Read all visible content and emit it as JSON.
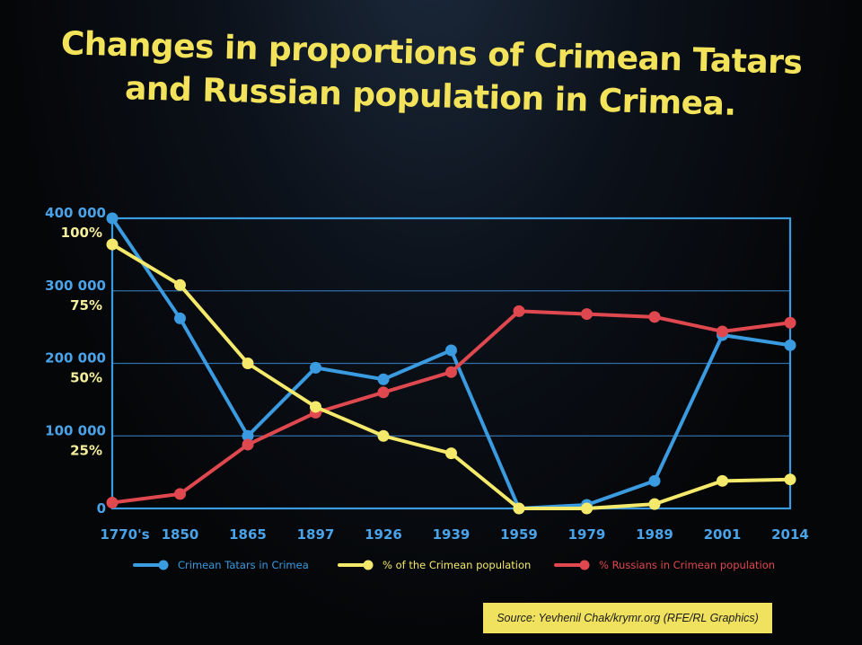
{
  "title": {
    "line1": "Changes in proportions of Crimean Tatars",
    "line2": "and Russian population in Crimea."
  },
  "source": "Source: Yevhenil Chak/krymr.org (RFE/RL Graphics)",
  "colors": {
    "tatars": "#3a9be0",
    "percent": "#f4e96a",
    "russians": "#e0484f",
    "axis_text": "#4aa3e8",
    "pct_text": "#f4ee9c",
    "frame": "#3a9be0",
    "grid": "#2f6ea8"
  },
  "chart_data": {
    "type": "line",
    "categories": [
      "1770's",
      "1850",
      "1865",
      "1897",
      "1926",
      "1939",
      "1959",
      "1979",
      "1989",
      "2001",
      "2014"
    ],
    "y_left": {
      "ticks": [
        "0",
        "100 000",
        "200 000",
        "300 000",
        "400 000"
      ],
      "ylim": [
        0,
        400000
      ]
    },
    "y_right": {
      "ticks": [
        "25%",
        "50%",
        "75%",
        "100%"
      ],
      "ylim": [
        0,
        100
      ]
    },
    "series": [
      {
        "name": "Crimean Tatars in Crimea",
        "axis": "left",
        "colorKey": "tatars",
        "values": [
          400000,
          262000,
          100000,
          194000,
          178000,
          218000,
          0,
          5000,
          38000,
          239000,
          225000
        ]
      },
      {
        "name": "% of the Crimean population",
        "axis": "right",
        "colorKey": "percent",
        "values": [
          91,
          77,
          50,
          35,
          25,
          19,
          0,
          0,
          1.5,
          9.5,
          10
        ]
      },
      {
        "name": "% Russians in Crimean population",
        "axis": "right",
        "colorKey": "russians",
        "values": [
          2,
          5,
          22,
          33,
          40,
          47,
          68,
          67,
          66,
          61,
          64
        ]
      }
    ],
    "grid": true,
    "legend_position": "bottom"
  }
}
